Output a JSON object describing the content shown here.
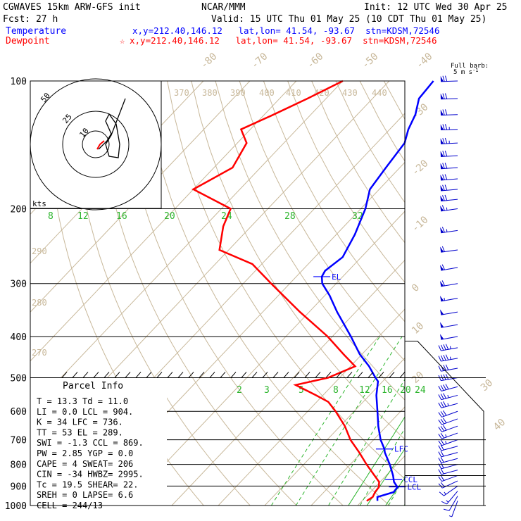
{
  "header": {
    "model": "CGWAVES 15km ARW-GFS init",
    "org": "NCAR/MMM",
    "init": "Init: 12 UTC Wed 30 Apr 25",
    "fcst": "Fcst:   27 h",
    "valid": "Valid: 15 UTC Thu 01 May 25 (10 CDT Thu 01 May 25)",
    "temp_label": "Temperature",
    "temp_loc": "x,y=212.40,146.12   lat,lon= 41.54, -93.67  stn=KDSM,72546",
    "dew_label": "Dewpoint",
    "dew_loc": "x,y=212.40,146.12   lat,lon= 41.54, -93.67  stn=KDSM,72546",
    "dew_star": "☆",
    "barb_note1": "Full barb:",
    "barb_note2": "5 m s",
    "barb_note_exp": "-1"
  },
  "colors": {
    "temperature": "#0000ff",
    "dewpoint": "#ff0000",
    "isotherm": "#c8b89a",
    "mixing_ratio": "#2db52d",
    "grid": "#000000",
    "frame": "#000000"
  },
  "hodograph": {
    "kts_label": "kts",
    "ring_labels": [
      "10",
      "25",
      "50"
    ]
  },
  "parcel_info": {
    "title": "Parcel Info",
    "rows": [
      "T  =    13.3 Td =  11.0",
      "LI =     0.0 LCL =  904.",
      "K  =      34 LFC =  736.",
      "TT =      53 EL  =  289.",
      "SWI =   -1.3 CCL =  869.",
      "PW =    2.85 YGP =   0.0",
      "CAPE =     4 SWEAT=  206",
      "CIN =    -34 HWBZ= 2995.",
      "Tc =    19.5 SHEAR=  22.",
      "SREH =     0 LAPSE=  6.6",
      "CELL = 244/13"
    ]
  },
  "chart_data": {
    "type": "line",
    "subtype": "skew-T log-P sounding",
    "yscale": "log",
    "ylim_hpa": [
      1000,
      100
    ],
    "pressure_ticks": [
      "100",
      "200",
      "300",
      "400",
      "500",
      "600",
      "700",
      "800",
      "900",
      "1000"
    ],
    "isotherm_labels": [
      "-80",
      "-70",
      "-60",
      "-50",
      "-40",
      "-30",
      "-20",
      "-10",
      "0",
      "10",
      "20",
      "30",
      "40"
    ],
    "dry_adiabat_labels": [
      "370",
      "380",
      "390",
      "400",
      "410",
      "420",
      "430",
      "440",
      "290",
      "280",
      "270"
    ],
    "mixing_ratio_labels_upper": [
      "8",
      "12",
      "16",
      "20",
      "24",
      "28",
      "32"
    ],
    "mixing_ratio_labels_lower": [
      "2",
      "3",
      "5",
      "8",
      "12",
      "16",
      "20",
      "24"
    ],
    "levels": [
      {
        "name": "EL",
        "p": 289
      },
      {
        "name": "LFC",
        "p": 736
      },
      {
        "name": "CCL",
        "p": 869
      },
      {
        "name": "LCL",
        "p": 904
      }
    ],
    "series": [
      {
        "name": "Temperature",
        "p": [
          975,
          955,
          930,
          905,
          880,
          850,
          800,
          750,
          736,
          700,
          650,
          600,
          550,
          510,
          500,
          470,
          440,
          400,
          350,
          320,
          300,
          289,
          280,
          260,
          230,
          200,
          180,
          160,
          140,
          130,
          120,
          110,
          100
        ],
        "t": [
          13.3,
          12.5,
          15.0,
          14.8,
          13.0,
          11.5,
          8.5,
          5.0,
          4.2,
          1.5,
          -1.8,
          -5.0,
          -8.5,
          -11.0,
          -12.3,
          -16.0,
          -20.5,
          -26.0,
          -34.0,
          -39.0,
          -43.0,
          -44.5,
          -45.0,
          -44.0,
          -46.0,
          -49.0,
          -52.0,
          -53.0,
          -54.0,
          -56.0,
          -57.5,
          -60.0,
          -60.5
        ]
      },
      {
        "name": "Dewpoint",
        "p": [
          975,
          955,
          930,
          905,
          880,
          850,
          800,
          750,
          700,
          650,
          600,
          570,
          550,
          520,
          500,
          470,
          440,
          400,
          350,
          300,
          270,
          250,
          220,
          200,
          180,
          160,
          140,
          130,
          120,
          110,
          100
        ],
        "t": [
          11.0,
          11.5,
          11.0,
          10.8,
          9.8,
          7.5,
          3.5,
          -0.5,
          -5.0,
          -9.0,
          -14.0,
          -17.5,
          -21.5,
          -28.0,
          -22.5,
          -19.0,
          -24.0,
          -31.0,
          -42.0,
          -54.0,
          -62.0,
          -72.0,
          -76.0,
          -78.0,
          -90.0,
          -86.0,
          -88.0,
          -92.0,
          -88.0,
          -84.0,
          -80.0
        ]
      }
    ],
    "wind_barbs": {
      "unit": "m s-1",
      "p": [
        975,
        950,
        925,
        900,
        875,
        850,
        825,
        800,
        775,
        750,
        725,
        700,
        675,
        650,
        625,
        600,
        575,
        550,
        525,
        500,
        475,
        450,
        425,
        400,
        375,
        350,
        325,
        300,
        275,
        250,
        225,
        200,
        190,
        180,
        170,
        160,
        150,
        140,
        130,
        120,
        110,
        100
      ],
      "dir": [
        200,
        210,
        220,
        235,
        245,
        250,
        255,
        255,
        255,
        255,
        255,
        250,
        250,
        250,
        250,
        250,
        255,
        255,
        255,
        260,
        260,
        260,
        260,
        260,
        260,
        260,
        260,
        260,
        260,
        262,
        262,
        262,
        264,
        265,
        265,
        266,
        267,
        267,
        268,
        268,
        268,
        268
      ],
      "spd": [
        3,
        6,
        8,
        9,
        10,
        10,
        11,
        11,
        12,
        12,
        12,
        13,
        14,
        15,
        16,
        17,
        18,
        19,
        20,
        21,
        22,
        23,
        24,
        25,
        26,
        27,
        28,
        30,
        31,
        32,
        33,
        34,
        35,
        36,
        36,
        37,
        37,
        38,
        38,
        37,
        36,
        35
      ]
    }
  }
}
